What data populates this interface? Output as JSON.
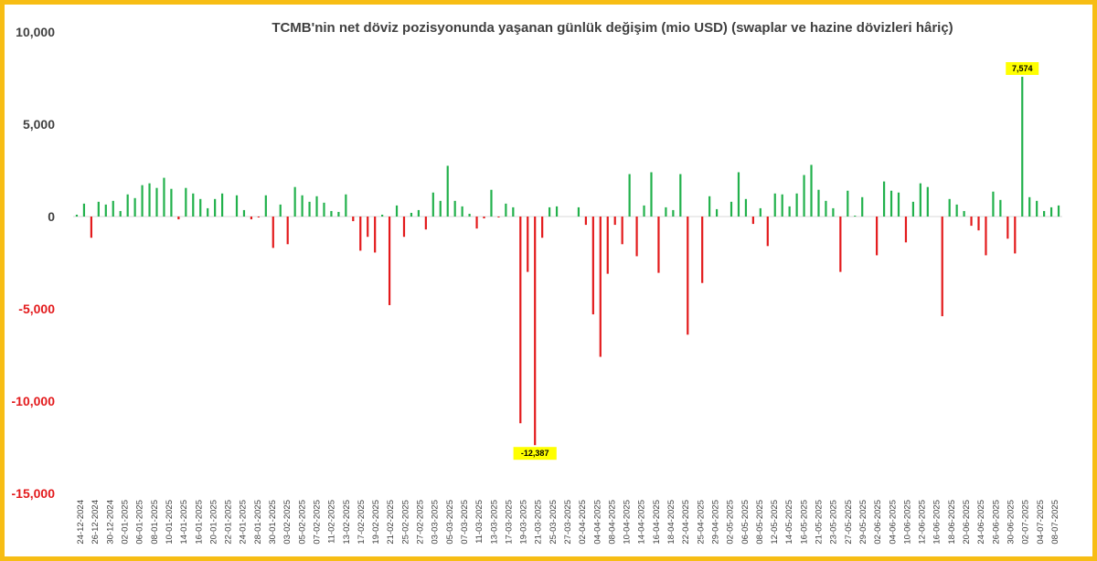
{
  "chart_data": {
    "type": "bar",
    "title": "TCMB'nin net döviz pozisyonunda yaşanan günlük değişim (mio USD) (swaplar ve hazine dövizleri hâriç)",
    "xlabel": "",
    "ylabel": "",
    "ylim": [
      -15000,
      10000
    ],
    "yticks": [
      10000,
      5000,
      0,
      -5000,
      -10000,
      -15000
    ],
    "ytick_labels": [
      "10,000",
      "5,000",
      "0",
      "-5,000",
      "-10,000",
      "-15,000"
    ],
    "xtick_labels": [
      "24-12-2024",
      "26-12-2024",
      "30-12-2024",
      "02-01-2025",
      "06-01-2025",
      "08-01-2025",
      "10-01-2025",
      "14-01-2025",
      "16-01-2025",
      "20-01-2025",
      "22-01-2025",
      "24-01-2025",
      "28-01-2025",
      "30-01-2025",
      "03-02-2025",
      "05-02-2025",
      "07-02-2025",
      "11-02-2025",
      "13-02-2025",
      "17-02-2025",
      "19-02-2025",
      "21-02-2025",
      "25-02-2025",
      "27-02-2025",
      "03-03-2025",
      "05-03-2025",
      "07-03-2025",
      "11-03-2025",
      "13-03-2025",
      "17-03-2025",
      "19-03-2025",
      "21-03-2025",
      "25-03-2025",
      "27-03-2025",
      "02-04-2025",
      "04-04-2025",
      "08-04-2025",
      "10-04-2025",
      "14-04-2025",
      "16-04-2025",
      "18-04-2025",
      "22-04-2025",
      "25-04-2025",
      "29-04-2025",
      "02-05-2025",
      "06-05-2025",
      "08-05-2025",
      "12-05-2025",
      "14-05-2025",
      "16-05-2025",
      "21-05-2025",
      "23-05-2025",
      "27-05-2025",
      "29-05-2025",
      "02-06-2025",
      "04-06-2025",
      "10-06-2025",
      "12-06-2025",
      "16-06-2025",
      "18-06-2025",
      "20-06-2025",
      "24-06-2025",
      "26-06-2025",
      "30-06-2025",
      "02-07-2025",
      "04-07-2025",
      "08-07-2025"
    ],
    "values": [
      100,
      700,
      -1150,
      800,
      650,
      850,
      300,
      1200,
      1000,
      1700,
      1800,
      1550,
      2100,
      1500,
      -150,
      1550,
      1250,
      950,
      450,
      950,
      1250,
      0,
      1150,
      350,
      -150,
      -50,
      1150,
      -1700,
      650,
      -1500,
      1600,
      1150,
      800,
      1100,
      750,
      300,
      250,
      1200,
      -250,
      -1850,
      -1100,
      -1950,
      100,
      -4800,
      600,
      -1100,
      200,
      350,
      -700,
      1300,
      850,
      2750,
      850,
      550,
      150,
      -650,
      -100,
      1450,
      -50,
      700,
      500,
      -11200,
      -3000,
      -12387,
      -1150,
      500,
      550,
      0,
      0,
      500,
      -450,
      -5300,
      -7600,
      -3100,
      -450,
      -1500,
      2300,
      -2150,
      600,
      2400,
      -3050,
      500,
      350,
      2300,
      -6400,
      0,
      -3600,
      1100,
      400,
      0,
      800,
      2400,
      950,
      -400,
      450,
      -1600,
      1250,
      1200,
      550,
      1250,
      2250,
      2800,
      1450,
      850,
      450,
      -3000,
      1400,
      50,
      1050,
      0,
      -2100,
      1900,
      1400,
      1300,
      -1400,
      800,
      1800,
      1600,
      0,
      -5400,
      950,
      650,
      300,
      -500,
      -750,
      -2100,
      1350,
      900,
      -1200,
      -2000,
      7574,
      1050,
      850,
      300,
      500,
      600
    ],
    "annotations": [
      {
        "text": "7,574",
        "value": 7574
      },
      {
        "text": "-12,387",
        "value": -12387
      }
    ],
    "colors": {
      "positive": "#22b14c",
      "negative": "#e31a1c",
      "ytick_positive": "#404040",
      "ytick_negative": "#e31a1c",
      "callout": "#ffff00",
      "frame": "#f7bd14"
    },
    "grid": false,
    "legend": "none"
  }
}
